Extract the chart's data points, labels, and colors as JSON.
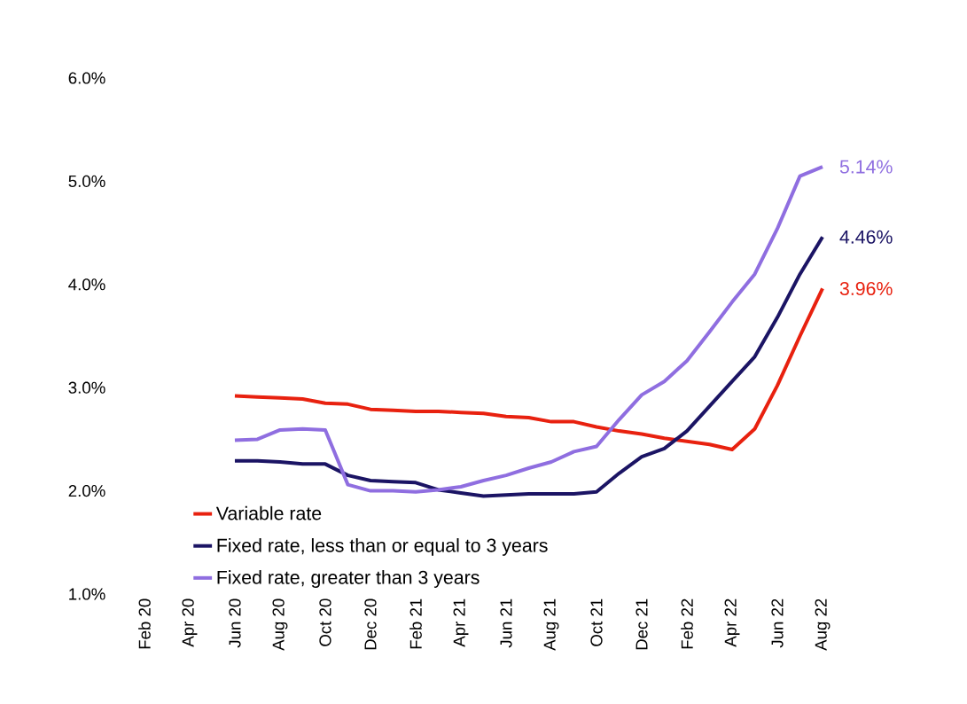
{
  "chart_data": {
    "type": "line",
    "categories": [
      "Feb 20",
      null,
      "Apr 20",
      null,
      "Jun 20",
      null,
      "Aug 20",
      null,
      "Oct 20",
      null,
      "Dec 20",
      null,
      "Feb 21",
      null,
      "Apr 21",
      null,
      "Jun 21",
      null,
      "Aug 21",
      null,
      "Oct 21",
      null,
      "Dec 21",
      null,
      "Feb 22",
      null,
      "Apr 22",
      null,
      "Jun 22",
      null,
      "Aug 22"
    ],
    "series": [
      {
        "name": "Variable rate",
        "color": "#e8210f",
        "values": [
          null,
          null,
          null,
          null,
          2.92,
          2.91,
          2.9,
          2.89,
          2.85,
          2.84,
          2.79,
          2.78,
          2.77,
          2.77,
          2.76,
          2.75,
          2.72,
          2.71,
          2.67,
          2.67,
          2.62,
          2.58,
          2.55,
          2.51,
          2.48,
          2.45,
          2.4,
          2.6,
          3.02,
          3.5,
          3.96
        ]
      },
      {
        "name": "Fixed rate, less than or equal to 3 years",
        "color": "#1b1464",
        "values": [
          null,
          null,
          null,
          null,
          2.29,
          2.29,
          2.28,
          2.26,
          2.26,
          2.15,
          2.1,
          2.09,
          2.08,
          2.01,
          1.98,
          1.95,
          1.96,
          1.97,
          1.97,
          1.97,
          1.99,
          2.17,
          2.33,
          2.41,
          2.58,
          2.82,
          3.06,
          3.3,
          3.68,
          4.1,
          4.46
        ]
      },
      {
        "name": "Fixed rate, greater than 3 years",
        "color": "#8f6ee0",
        "values": [
          null,
          null,
          null,
          null,
          2.49,
          2.5,
          2.59,
          2.6,
          2.59,
          2.06,
          2.0,
          2.0,
          1.99,
          2.01,
          2.04,
          2.1,
          2.15,
          2.22,
          2.28,
          2.38,
          2.43,
          2.69,
          2.93,
          3.06,
          3.26,
          3.54,
          3.83,
          4.1,
          4.54,
          5.05,
          5.14
        ]
      }
    ],
    "ylim": [
      1,
      6
    ],
    "yticks": [
      {
        "value": 1,
        "label": "1.0%"
      },
      {
        "value": 2,
        "label": "2.0%"
      },
      {
        "value": 3,
        "label": "3.0%"
      },
      {
        "value": 4,
        "label": "4.0%"
      },
      {
        "value": 5,
        "label": "5.0%"
      },
      {
        "value": 6,
        "label": "6.0%"
      }
    ],
    "annotations": [
      {
        "text": "5.14%",
        "x": "Aug 22",
        "y": 5.14
      },
      {
        "text": "4.46%",
        "x": "Aug 22",
        "y": 4.46
      },
      {
        "text": "3.96%",
        "x": "Aug 22",
        "y": 3.96
      }
    ],
    "legend": "bottom left",
    "grid": false,
    "marker": "none",
    "line_style": "solid"
  }
}
